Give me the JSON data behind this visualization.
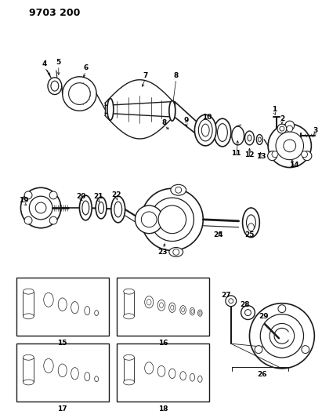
{
  "title_code": "9703 200",
  "bg": "#ffffff",
  "lc": "#1a1a1a",
  "fig_w": 4.11,
  "fig_h": 5.33,
  "dpi": 100,
  "title_fs": 9,
  "label_fs": 6.5
}
